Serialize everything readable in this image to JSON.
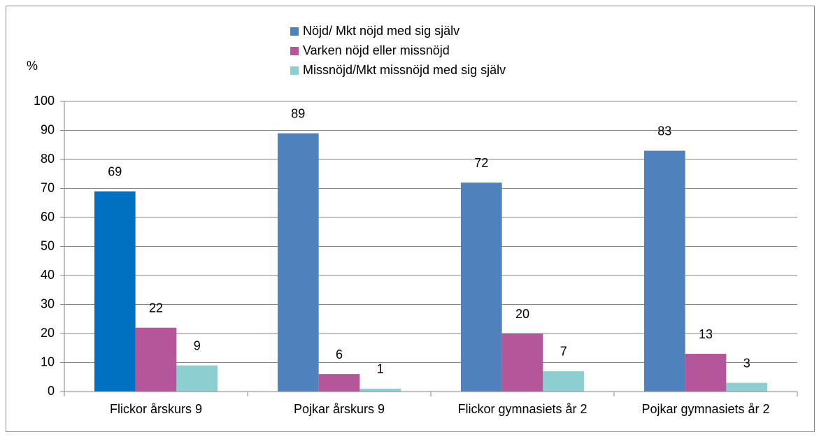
{
  "chart_data": {
    "type": "bar",
    "y_label": "%",
    "categories": [
      "Flickor årskurs 9",
      "Pojkar årskurs 9",
      "Flickor gymnasiets år 2",
      "Pojkar gymnasiets år 2"
    ],
    "series": [
      {
        "name": "Nöjd/ Mkt nöjd med sig själv",
        "color": "#4f81bd",
        "point_colors": [
          "#0070c0",
          "#4f81bd",
          "#4f81bd",
          "#4f81bd"
        ],
        "values": [
          69,
          89,
          72,
          83
        ]
      },
      {
        "name": "Varken nöjd eller missnöjd",
        "color": "#b5559a",
        "values": [
          22,
          6,
          20,
          13
        ]
      },
      {
        "name": "Missnöjd/Mkt missnöjd med sig själv",
        "color": "#8dcfd0",
        "values": [
          9,
          1,
          7,
          3
        ]
      }
    ],
    "ylim": [
      0,
      100
    ],
    "yticks": [
      0,
      10,
      20,
      30,
      40,
      50,
      60,
      70,
      80,
      90,
      100
    ],
    "grid": true,
    "legend": "top"
  }
}
